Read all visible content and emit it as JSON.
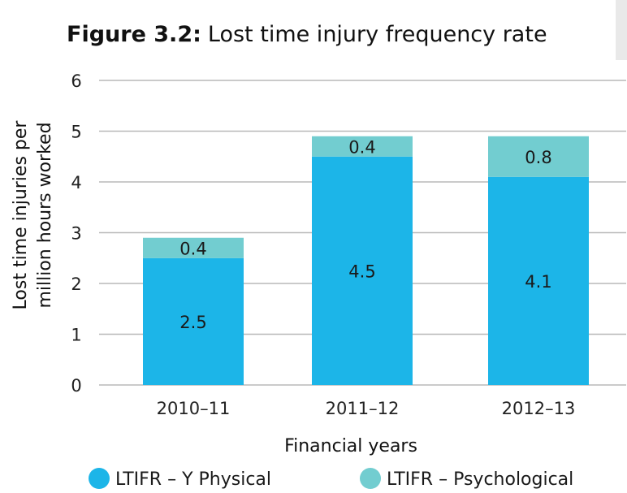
{
  "chart_data": {
    "type": "bar",
    "stacked": true,
    "title_prefix": "Figure 3.2:",
    "title": "Lost time injury frequency rate",
    "xlabel": "Financial years",
    "ylabel_lines": [
      "Lost time injuries per",
      "million hours worked"
    ],
    "categories": [
      "2010–11",
      "2011–12",
      "2012–13"
    ],
    "ylim": [
      0,
      6
    ],
    "yticks": [
      0,
      1,
      2,
      3,
      4,
      5,
      6
    ],
    "grid": true,
    "legend_position": "bottom",
    "series": [
      {
        "name": "LTIFR – Y Physical",
        "values": [
          2.5,
          4.5,
          4.1
        ],
        "labels": [
          "2.5",
          "4.5",
          "4.1"
        ],
        "color": "#1cb5e8"
      },
      {
        "name": "LTIFR – Psychological",
        "values": [
          0.4,
          0.4,
          0.8
        ],
        "labels": [
          "0.4",
          "0.4",
          "0.8"
        ],
        "color": "#72cdd0"
      }
    ]
  }
}
